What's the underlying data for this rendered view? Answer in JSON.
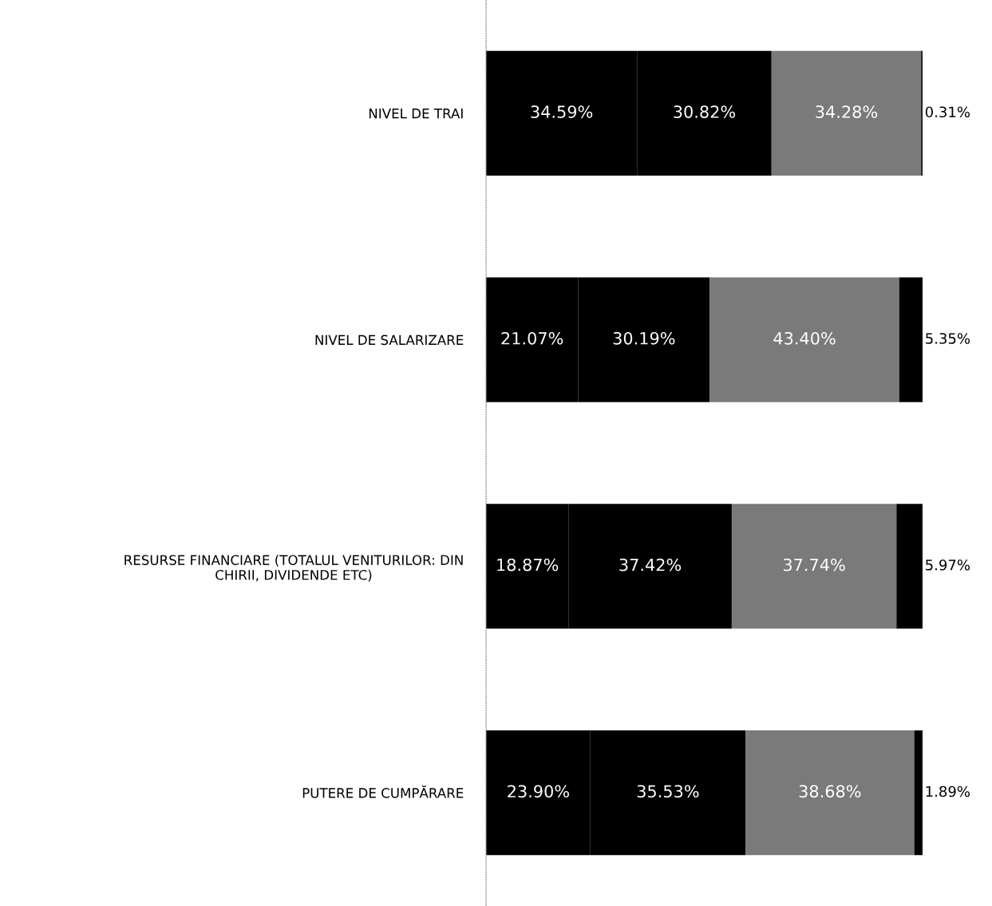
{
  "chart_data": {
    "type": "bar",
    "orientation": "horizontal",
    "stacked": true,
    "categories": [
      "NIVEL DE TRAI",
      "NIVEL DE SALARIZARE",
      "RESURSE FINANCIARE (TOTALUL VENITURILOR: DIN\nCHIRII, DIVIDENDE ETC)",
      "PUTERE DE CUMPĂRARE"
    ],
    "series": [
      {
        "color": "#000000",
        "values": [
          34.59,
          21.07,
          18.87,
          23.9
        ],
        "value_labels": [
          "34.59%",
          "21.07%",
          "18.87%",
          "23.90%"
        ]
      },
      {
        "color": "#000000",
        "values": [
          30.82,
          30.19,
          37.42,
          35.53
        ],
        "value_labels": [
          "30.82%",
          "30.19%",
          "37.42%",
          "35.53%"
        ]
      },
      {
        "color": "#7a7a7a",
        "values": [
          34.28,
          43.4,
          37.74,
          38.68
        ],
        "value_labels": [
          "34.28%",
          "43.40%",
          "37.74%",
          "38.68%"
        ]
      },
      {
        "color": "#000000",
        "values": [
          0.31,
          5.35,
          5.97,
          1.89
        ],
        "value_labels": [
          "0.31%",
          "5.35%",
          "5.97%",
          "1.89%"
        ]
      }
    ],
    "grid": false,
    "legend": false
  }
}
